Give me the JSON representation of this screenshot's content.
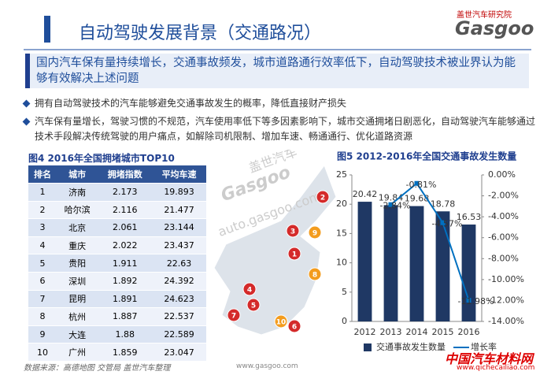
{
  "header": {
    "title": "自动驾驶发展背景（交通路况）",
    "logo_top": "盖世汽车研究院",
    "logo": "Gasgoo"
  },
  "summary": "国内汽车保有量持续增长，交通事故频发，城市道路通行效率低下，自动驾驶技术被业界认为能够有效解决上述问题",
  "bullets": [
    "拥有自动驾驶技术的汽车能够避免交通事故发生的概率，降低直接财产损失",
    "汽车保有量增长，驾驶习惯的不规范，汽车使用率低下等多因素影响下，城市交通拥堵日剧恶化，自动驾驶汽车能够通过技术手段解决传统驾驶的用户痛点，如解除司机限制、增加车速、畅通通行、优化道路资源"
  ],
  "table": {
    "title": "图4  2016年全国拥堵城市TOP10",
    "header": [
      "排名",
      "城市",
      "拥堵指数",
      "平均车速"
    ],
    "rows": [
      [
        "1",
        "济南",
        "2.173",
        "19.893"
      ],
      [
        "2",
        "哈尔滨",
        "2.116",
        "21.477"
      ],
      [
        "3",
        "北京",
        "2.061",
        "23.144"
      ],
      [
        "4",
        "重庆",
        "2.022",
        "23.437"
      ],
      [
        "5",
        "贵阳",
        "1.911",
        "22.63"
      ],
      [
        "6",
        "深圳",
        "1.892",
        "24.392"
      ],
      [
        "7",
        "昆明",
        "1.891",
        "24.623"
      ],
      [
        "8",
        "杭州",
        "1.887",
        "22.537"
      ],
      [
        "9",
        "大连",
        "1.88",
        "22.589"
      ],
      [
        "10",
        "广州",
        "1.859",
        "23.047"
      ]
    ]
  },
  "map": {
    "watermark_cn": "盖世汽车",
    "watermark_logo": "Gasgoo",
    "watermark_url": "auto.gasgoo.com",
    "markers": [
      "2",
      "3",
      "9",
      "1",
      "8",
      "4",
      "5",
      "7",
      "10",
      "6"
    ]
  },
  "chart_data": {
    "type": "combo",
    "title": "图5  2012-2016年全国交通事故发生数量",
    "categories": [
      "2012",
      "2013",
      "2014",
      "2015",
      "2016"
    ],
    "series": [
      {
        "name": "交通事故发生数量",
        "color": "#1f3864",
        "type": "bar",
        "values": [
          20.42,
          19.84,
          19.68,
          18.78,
          16.53
        ]
      },
      {
        "name": "增长率",
        "color": "#0070c0",
        "type": "line",
        "axis": "y2",
        "values": [
          null,
          -2.84,
          -0.81,
          -4.57,
          -11.98
        ],
        "value_labels": [
          null,
          "-2.84%",
          "-0.81%",
          "-4.57%",
          "-11.98%"
        ]
      }
    ],
    "ylim": [
      0,
      25
    ],
    "yticks": [
      0,
      5,
      10,
      15,
      20,
      25
    ],
    "y2lim": [
      -14,
      0
    ],
    "y2ticks": [
      {
        "value": 0,
        "label": "0.00%"
      },
      {
        "value": -2,
        "label": "-2.00%"
      },
      {
        "value": -4,
        "label": "-4.00%"
      },
      {
        "value": -6,
        "label": "-6.00%"
      },
      {
        "value": -8,
        "label": "-8.00%"
      },
      {
        "value": -10,
        "label": "-10.00%"
      },
      {
        "value": -12,
        "label": "-12.00%"
      },
      {
        "value": -14,
        "label": "-14.00%"
      }
    ]
  },
  "footer": {
    "source": "数据来源：高德地图 交管局 盖世汽车整理",
    "url": "www.gasgoo.com",
    "watermark": "中国汽车材料网",
    "watermark_url": "www.qichecailiao.com"
  }
}
